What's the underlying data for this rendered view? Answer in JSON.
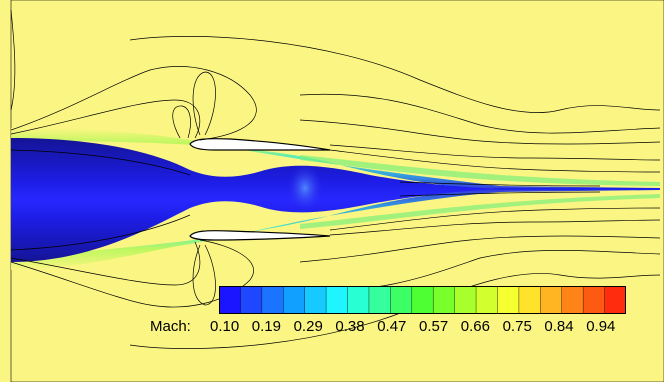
{
  "colorbar": {
    "variable_label": "Mach:",
    "tick_labels": [
      "0.10",
      "0.19",
      "0.29",
      "0.38",
      "0.47",
      "0.57",
      "0.66",
      "0.75",
      "0.84",
      "0.94"
    ],
    "colors": [
      "#1a14ff",
      "#1f47ff",
      "#1a74ff",
      "#11a0ff",
      "#16caff",
      "#1ef5ff",
      "#28ffd2",
      "#34ff9c",
      "#3cff66",
      "#4dff33",
      "#79ff2b",
      "#a9ff2c",
      "#d2ff2e",
      "#f6ff30",
      "#ffe22c",
      "#ffb521",
      "#ff8418",
      "#ff5a12",
      "#ff2d0d"
    ]
  },
  "colors": {
    "background_field": "#fbf683",
    "core_flow": "#1c1ce8",
    "nacelle": "#ffffff",
    "contour_line": "#000000"
  }
}
